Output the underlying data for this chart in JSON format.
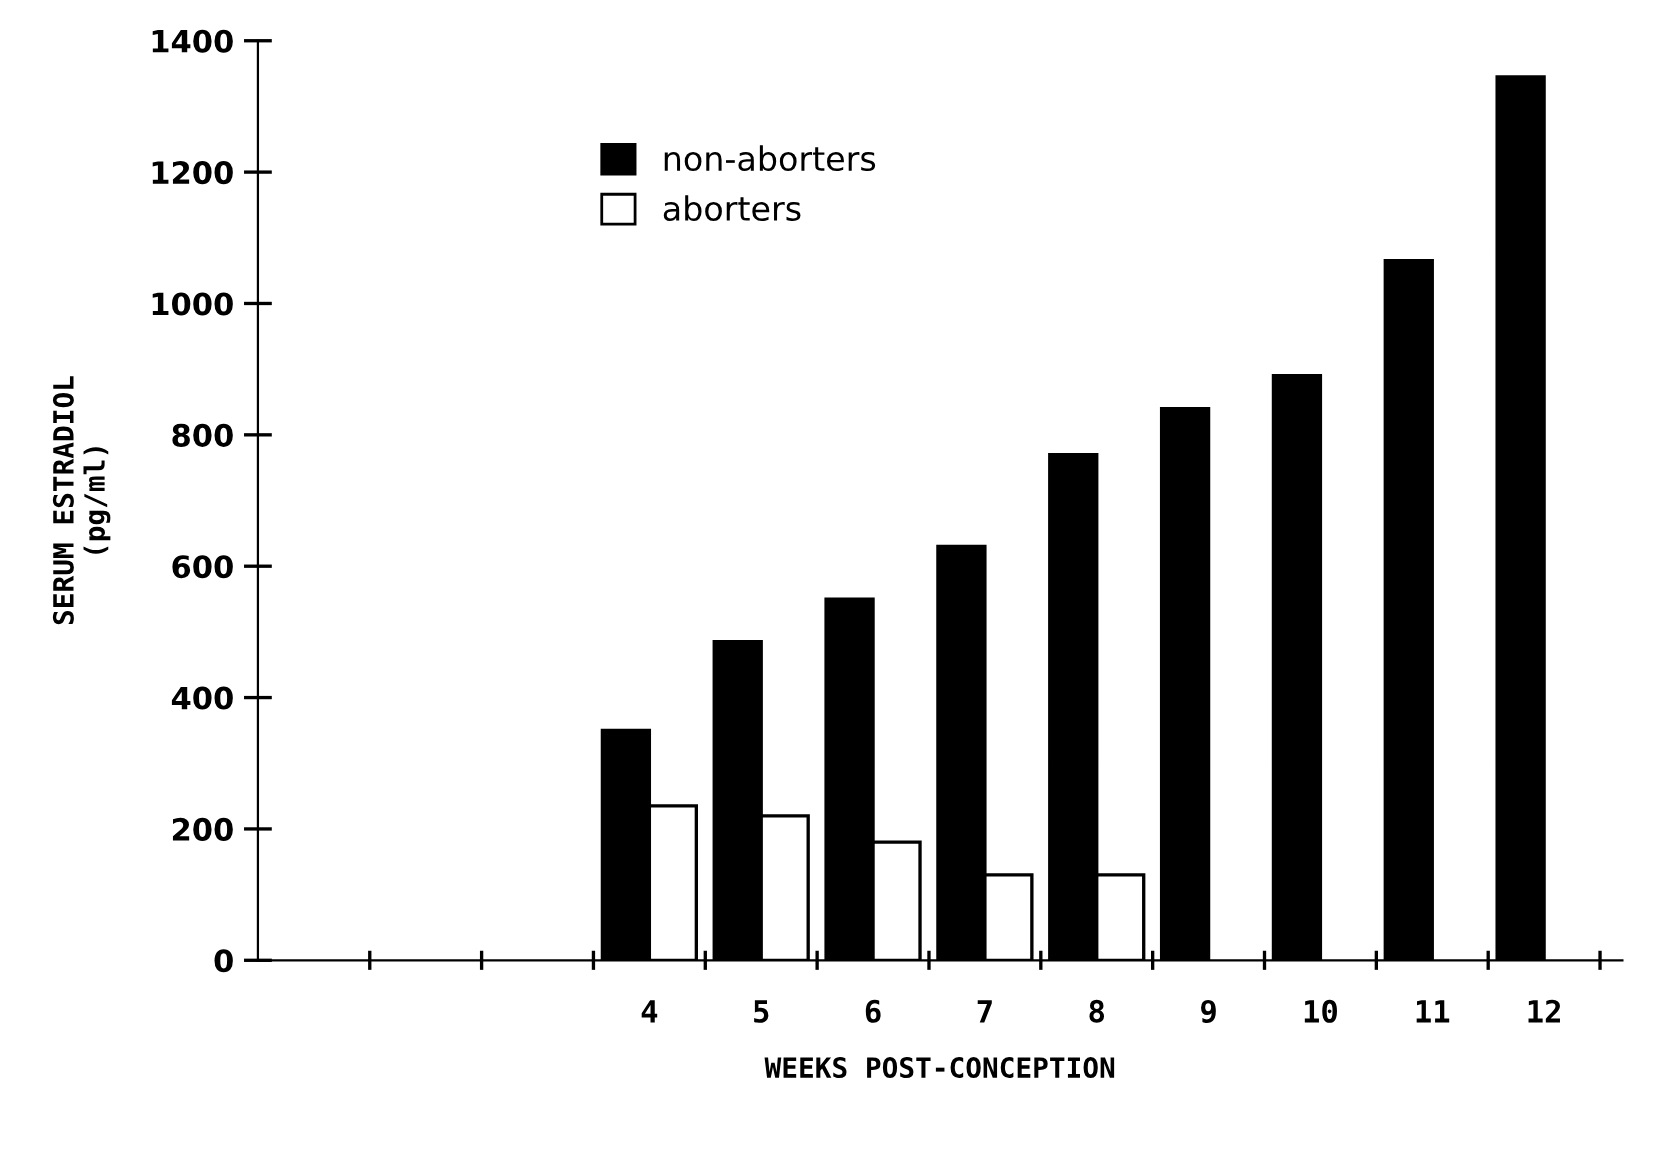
{
  "chart_data": {
    "type": "bar",
    "xlabel": "WEEKS POST-CONCEPTION",
    "ylabel": "SERUM ESTRADIOL\n(pg/ml)",
    "categories": [
      null,
      null,
      null,
      "4",
      "5",
      "6",
      "7",
      "8",
      "9",
      "10",
      "11",
      "12"
    ],
    "series": [
      {
        "name": "non-aborters",
        "color": "#000000",
        "values": [
          null,
          null,
          null,
          350,
          485,
          550,
          630,
          770,
          840,
          890,
          1065,
          1345
        ]
      },
      {
        "name": "aborters",
        "color": "#ffffff",
        "values": [
          null,
          null,
          null,
          235,
          220,
          180,
          130,
          130,
          null,
          null,
          null,
          null
        ]
      }
    ],
    "ylim": [
      0,
      1400
    ],
    "yticks": [
      0,
      200,
      400,
      600,
      800,
      1000,
      1200,
      1400
    ],
    "grid": false,
    "legend": "top left"
  }
}
